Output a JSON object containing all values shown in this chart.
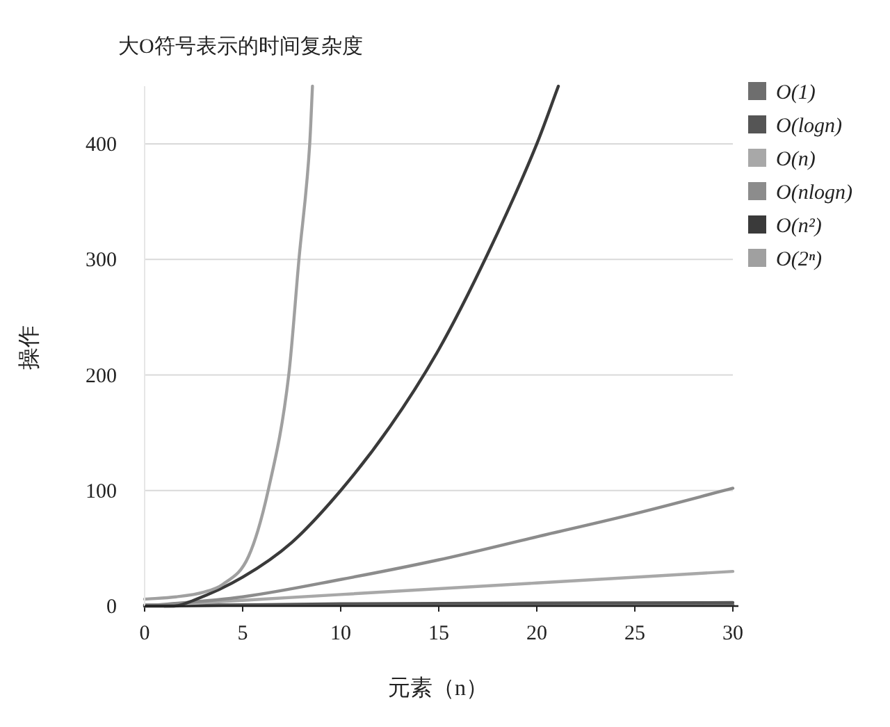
{
  "chart_data": {
    "type": "line",
    "title": "大O符号表示的时间复杂度",
    "xlabel": "元素（n）",
    "ylabel": "操作",
    "xlim": [
      0,
      30
    ],
    "ylim": [
      0,
      450
    ],
    "xticks": [
      0,
      5,
      10,
      15,
      20,
      25,
      30
    ],
    "yticks": [
      0,
      100,
      200,
      300,
      400
    ],
    "grid": "y",
    "legend": "top right",
    "marker": "none",
    "line_style": "solid",
    "series": [
      {
        "name": "O(1)",
        "color": "#6e6e6e",
        "x": [
          0,
          30
        ],
        "values": [
          1,
          1
        ]
      },
      {
        "name": "O(logn)",
        "color": "#555555",
        "x": [
          1,
          10,
          30
        ],
        "values": [
          0,
          2,
          3
        ]
      },
      {
        "name": "O(n)",
        "color": "#a8a8a8",
        "x": [
          0,
          10,
          20,
          30
        ],
        "values": [
          0,
          10,
          20,
          30
        ]
      },
      {
        "name": "O(nlogn)",
        "color": "#8c8c8c",
        "x": [
          0,
          5,
          10,
          15,
          20,
          25,
          30
        ],
        "values": [
          0,
          8,
          23,
          40,
          60,
          80,
          102
        ]
      },
      {
        "name": "O(n²)",
        "color": "#3a3a3a",
        "x": [
          0,
          1.5,
          2.5,
          5,
          7.5,
          10,
          12.5,
          15,
          17.5,
          20,
          21.1
        ],
        "values": [
          0,
          0,
          5,
          25,
          55,
          100,
          155,
          222,
          305,
          400,
          450
        ]
      },
      {
        "name": "O(2ⁿ)",
        "color": "#a0a0a0",
        "x": [
          0,
          1.6,
          3,
          4,
          5.3,
          6.3,
          7.35,
          7.87,
          8.42,
          8.56
        ],
        "values": [
          6,
          8,
          12,
          19,
          43,
          100,
          200,
          300,
          400,
          450
        ]
      }
    ]
  }
}
